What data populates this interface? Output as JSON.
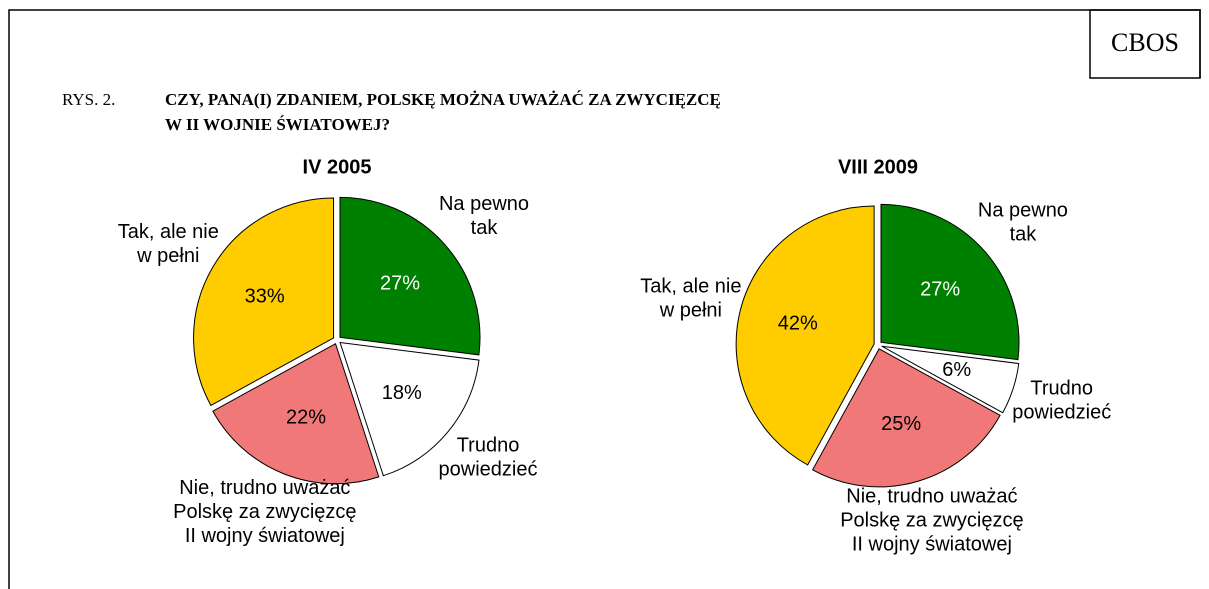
{
  "brand": "CBOS",
  "figure_label": "RYS. 2.",
  "title_lines": [
    "CZY, PANA(I) ZDANIEM, POLSKĘ MOŻNA UWAŻAĆ ZA ZWYCIĘZCĘ",
    "W II WOJNIE ŚWIATOWEJ?"
  ],
  "chart_data": [
    {
      "type": "pie",
      "title": "IV 2005",
      "categories": [
        "Na pewno\ntak",
        "Trudno\npowiedzieć",
        "Nie, trudno uważać\nPolskę za zwycięzcę\nII wojny światowej",
        "Tak, ale nie\nw pełni"
      ],
      "values": [
        27,
        18,
        22,
        33
      ],
      "value_labels": [
        "27%",
        "18%",
        "22%",
        "33%"
      ],
      "colors": [
        "#008000",
        "#ffffff",
        "#f07878",
        "#ffcc00"
      ]
    },
    {
      "type": "pie",
      "title": "VIII 2009",
      "categories": [
        "Na pewno\ntak",
        "Trudno\npowiedzieć",
        "Nie, trudno uważać\nPolskę za zwycięzcę\nII wojny światowej",
        "Tak, ale nie\nw pełni"
      ],
      "values": [
        27,
        6,
        25,
        42
      ],
      "value_labels": [
        "27%",
        "6%",
        "25%",
        "42%"
      ],
      "colors": [
        "#008000",
        "#ffffff",
        "#f07878",
        "#ffcc00"
      ]
    }
  ]
}
